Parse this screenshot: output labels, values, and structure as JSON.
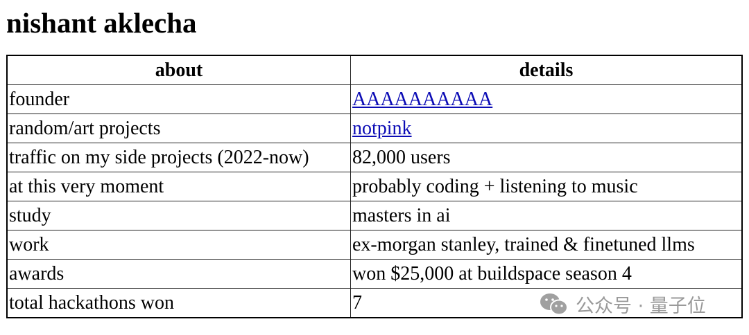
{
  "page": {
    "title": "nishant aklecha"
  },
  "table": {
    "headers": [
      "about",
      "details"
    ],
    "rows": [
      {
        "about": "founder",
        "details": "AAAAAAAAAA",
        "link": true
      },
      {
        "about": "random/art projects",
        "details": "notpink",
        "link": true
      },
      {
        "about": "traffic on my side projects (2022-now)",
        "details": "82,000 users"
      },
      {
        "about": "at this very moment",
        "details": "probably coding + listening to music"
      },
      {
        "about": "study",
        "details": "masters in ai"
      },
      {
        "about": "work",
        "details": "ex-morgan stanley, trained & finetuned llms"
      },
      {
        "about": "awards",
        "details": "won $25,000 at buildspace season 4"
      },
      {
        "about": "total hackathons won",
        "details": "7"
      }
    ]
  },
  "watermark": {
    "text": "公众号 · 量子位",
    "icon": "wechat-icon"
  },
  "colors": {
    "link": "#0b0bb5",
    "watermark": "#9a9a9a"
  }
}
